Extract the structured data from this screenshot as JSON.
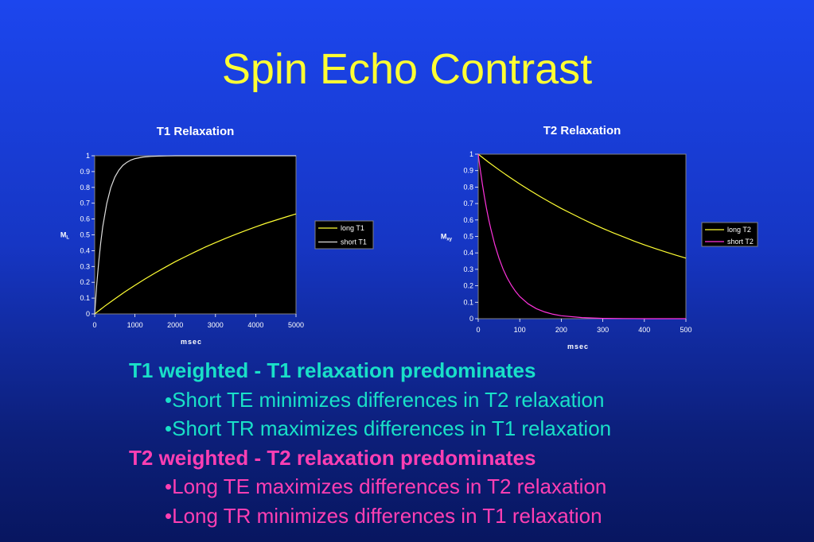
{
  "slide": {
    "title": "Spin Echo Contrast"
  },
  "colors": {
    "long_curve": "#ffff33",
    "short_t1_curve": "#dddddd",
    "short_t2_curve": "#ff33dd",
    "t1_text": "#19e0c8",
    "t2_text": "#ff3fb3"
  },
  "chart_data": [
    {
      "type": "line",
      "title": "T1 Relaxation",
      "xlabel": "msec",
      "ylabel": "M",
      "ylabel_sub": "L",
      "xlim": [
        0,
        5000
      ],
      "ylim": [
        0,
        1
      ],
      "xticks": [
        "0",
        "1000",
        "2000",
        "3000",
        "4000",
        "5000"
      ],
      "yticks": [
        "0",
        "0.1",
        "0.2",
        "0.3",
        "0.4",
        "0.5",
        "0.6",
        "0.7",
        "0.8",
        "0.9",
        "1"
      ],
      "grid": false,
      "legend": "right",
      "series": [
        {
          "name": "long T1",
          "x": [
            0,
            250,
            500,
            750,
            1000,
            1250,
            1500,
            1750,
            2000,
            2250,
            2500,
            2750,
            3000,
            3250,
            3500,
            3750,
            4000,
            4250,
            4500,
            4750,
            5000
          ],
          "values": [
            0,
            0.049,
            0.095,
            0.139,
            0.181,
            0.221,
            0.259,
            0.295,
            0.33,
            0.362,
            0.393,
            0.423,
            0.451,
            0.478,
            0.503,
            0.527,
            0.551,
            0.573,
            0.593,
            0.613,
            0.632
          ]
        },
        {
          "name": "short T1",
          "x": [
            0,
            50,
            100,
            150,
            200,
            300,
            400,
            500,
            600,
            700,
            800,
            900,
            1000,
            1200,
            1400,
            1600,
            1800,
            2000,
            2500,
            3000,
            3500,
            4000,
            4500,
            5000
          ],
          "values": [
            0,
            0.181,
            0.33,
            0.451,
            0.551,
            0.699,
            0.798,
            0.865,
            0.909,
            0.939,
            0.959,
            0.973,
            0.982,
            0.992,
            0.996,
            0.998,
            0.999,
            1.0,
            1.0,
            1.0,
            1.0,
            1.0,
            1.0,
            1.0
          ]
        }
      ]
    },
    {
      "type": "line",
      "title": "T2 Relaxation",
      "xlabel": "msec",
      "ylabel": "M",
      "ylabel_sub": "xy",
      "xlim": [
        0,
        500
      ],
      "ylim": [
        0,
        1
      ],
      "xticks": [
        "0",
        "100",
        "200",
        "300",
        "400",
        "500"
      ],
      "yticks": [
        "0",
        "0.1",
        "0.2",
        "0.3",
        "0.4",
        "0.5",
        "0.6",
        "0.7",
        "0.8",
        "0.9",
        "1"
      ],
      "grid": false,
      "legend": "right",
      "series": [
        {
          "name": "long T2",
          "x": [
            0,
            25,
            50,
            75,
            100,
            125,
            150,
            175,
            200,
            225,
            250,
            275,
            300,
            325,
            350,
            375,
            400,
            425,
            450,
            475,
            500
          ],
          "values": [
            1.0,
            0.951,
            0.905,
            0.861,
            0.819,
            0.779,
            0.741,
            0.705,
            0.67,
            0.638,
            0.607,
            0.577,
            0.549,
            0.522,
            0.497,
            0.472,
            0.449,
            0.427,
            0.407,
            0.387,
            0.368
          ]
        },
        {
          "name": "short T2",
          "x": [
            0,
            5,
            10,
            15,
            20,
            25,
            30,
            40,
            50,
            60,
            70,
            80,
            90,
            100,
            120,
            140,
            160,
            180,
            200,
            250,
            300,
            350,
            400,
            450,
            500
          ],
          "values": [
            1.0,
            0.905,
            0.819,
            0.741,
            0.67,
            0.607,
            0.549,
            0.449,
            0.368,
            0.301,
            0.247,
            0.202,
            0.165,
            0.135,
            0.091,
            0.061,
            0.041,
            0.027,
            0.018,
            0.007,
            0.002,
            0.001,
            0.0,
            0.0,
            0.0
          ]
        }
      ]
    }
  ],
  "bullets": {
    "t1_heading": "T1 weighted - T1 relaxation predominates",
    "t1_item1": "•Short TE minimizes differences in T2 relaxation",
    "t1_item2": "•Short TR maximizes differences in T1 relaxation",
    "t2_heading": "T2 weighted - T2 relaxation predominates",
    "t2_item1": "•Long TE maximizes differences in T2 relaxation",
    "t2_item2": "•Long TR minimizes differences in T1 relaxation"
  }
}
